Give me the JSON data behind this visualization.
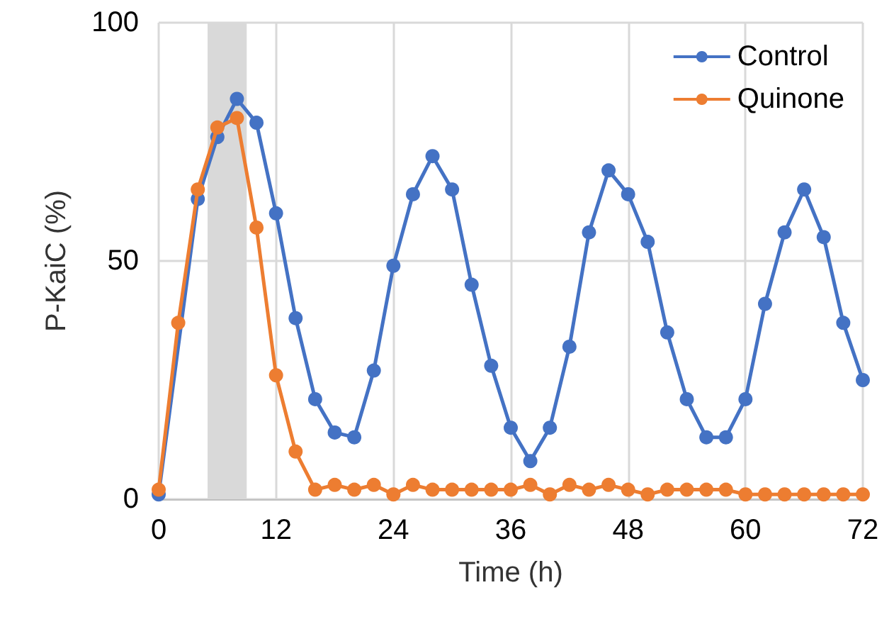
{
  "chart_data": {
    "type": "line",
    "xlabel": "Time (h)",
    "ylabel": "P-KaiC (%)",
    "x": [
      0,
      2,
      4,
      6,
      8,
      10,
      12,
      14,
      16,
      18,
      20,
      22,
      24,
      26,
      28,
      30,
      32,
      34,
      36,
      38,
      40,
      42,
      44,
      46,
      48,
      50,
      52,
      54,
      56,
      58,
      60,
      62,
      64,
      66,
      68,
      70,
      72
    ],
    "series": [
      {
        "name": "Control",
        "color": "#4472c4",
        "values": [
          1,
          null,
          63,
          76,
          84,
          79,
          60,
          38,
          21,
          14,
          13,
          27,
          49,
          64,
          72,
          65,
          45,
          28,
          15,
          8,
          15,
          32,
          56,
          69,
          64,
          54,
          35,
          21,
          13,
          13,
          21,
          41,
          56,
          65,
          55,
          37,
          25
        ]
      },
      {
        "name": "Quinone",
        "color": "#ed7d31",
        "values": [
          2,
          37,
          65,
          78,
          80,
          57,
          26,
          10,
          2,
          3,
          2,
          3,
          1,
          3,
          2,
          2,
          2,
          2,
          2,
          3,
          1,
          3,
          2,
          3,
          2,
          1,
          2,
          2,
          2,
          2,
          1,
          1,
          1,
          1,
          1,
          1,
          1
        ]
      }
    ],
    "xlim": [
      0,
      72
    ],
    "xticks": [
      0,
      12,
      24,
      36,
      48,
      60,
      72
    ],
    "ylim": [
      0,
      100
    ],
    "yticks": [
      0,
      50,
      100
    ],
    "bands": [
      {
        "axis": "x",
        "from": 5,
        "to": 9,
        "color": "#d9d9d9"
      }
    ],
    "grid": true,
    "legend": "top right",
    "marker": "circle",
    "line_style": "solid"
  }
}
